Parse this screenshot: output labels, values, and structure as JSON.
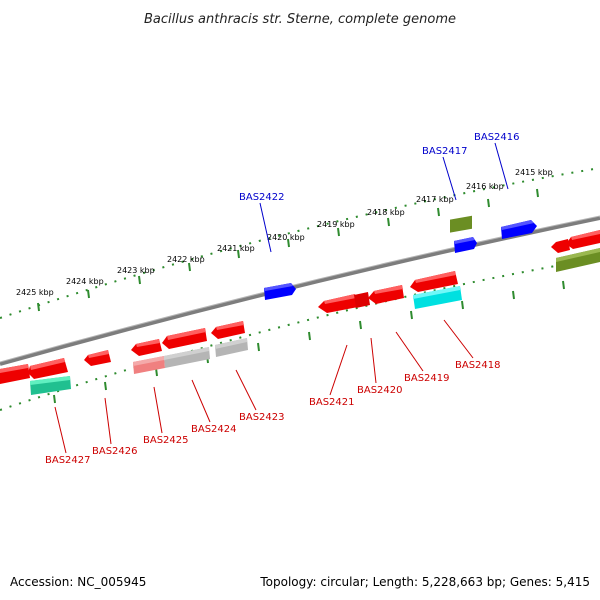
{
  "title": "Bacillus anthracis str. Sterne, complete genome",
  "footer": {
    "accession": "Accession: NC_005945",
    "topology": "Topology: circular; Length: 5,228,663 bp; Genes: 5,415"
  },
  "colors": {
    "forward_label": "#0000cc",
    "reverse_label": "#cc0000",
    "ruler_ticks": "#2e8b2e",
    "backbone": "#808080"
  },
  "ruler_labels": [
    "2425 kbp",
    "2424 kbp",
    "2423 kbp",
    "2422 kbp",
    "2421 kbp",
    "2420 kbp",
    "2419 kbp",
    "2418 kbp",
    "2417 kbp",
    "2416 kbp",
    "2415 kbp"
  ],
  "forward_genes": [
    {
      "name": "BAS2422",
      "color": "blue"
    },
    {
      "name": "BAS2417",
      "color": "blue"
    },
    {
      "name": "BAS2416",
      "color": "blue"
    }
  ],
  "reverse_genes": [
    {
      "name": "BAS2427"
    },
    {
      "name": "BAS2426"
    },
    {
      "name": "BAS2425"
    },
    {
      "name": "BAS2424"
    },
    {
      "name": "BAS2423"
    },
    {
      "name": "BAS2421"
    },
    {
      "name": "BAS2420"
    },
    {
      "name": "BAS2419"
    },
    {
      "name": "BAS2418"
    }
  ]
}
